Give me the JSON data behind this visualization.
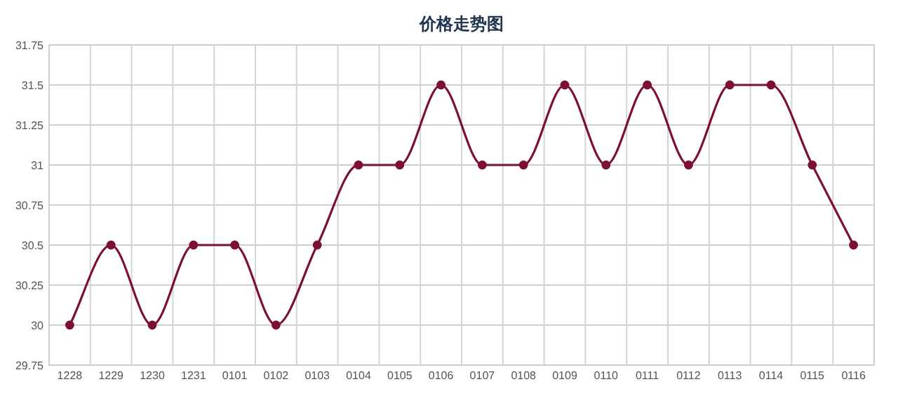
{
  "chart_data": {
    "type": "line",
    "title": "价格走势图",
    "categories": [
      "1228",
      "1229",
      "1230",
      "1231",
      "0101",
      "0102",
      "0103",
      "0104",
      "0105",
      "0106",
      "0107",
      "0108",
      "0109",
      "0110",
      "0111",
      "0112",
      "0113",
      "0114",
      "0115",
      "0116"
    ],
    "series": [
      {
        "color": "#7b1030",
        "values": [
          30,
          30.5,
          30,
          30.5,
          30.5,
          30,
          30.5,
          31,
          31,
          31.5,
          31,
          31,
          31.5,
          31,
          31.5,
          31,
          31.5,
          31.5,
          31,
          30.5
        ]
      }
    ],
    "ylim": [
      29.75,
      31.75
    ],
    "yticks": [
      29.75,
      30,
      30.25,
      30.5,
      30.75,
      31,
      31.25,
      31.5,
      31.75
    ],
    "grid": true,
    "marker": "circle",
    "line_style": "solid"
  }
}
